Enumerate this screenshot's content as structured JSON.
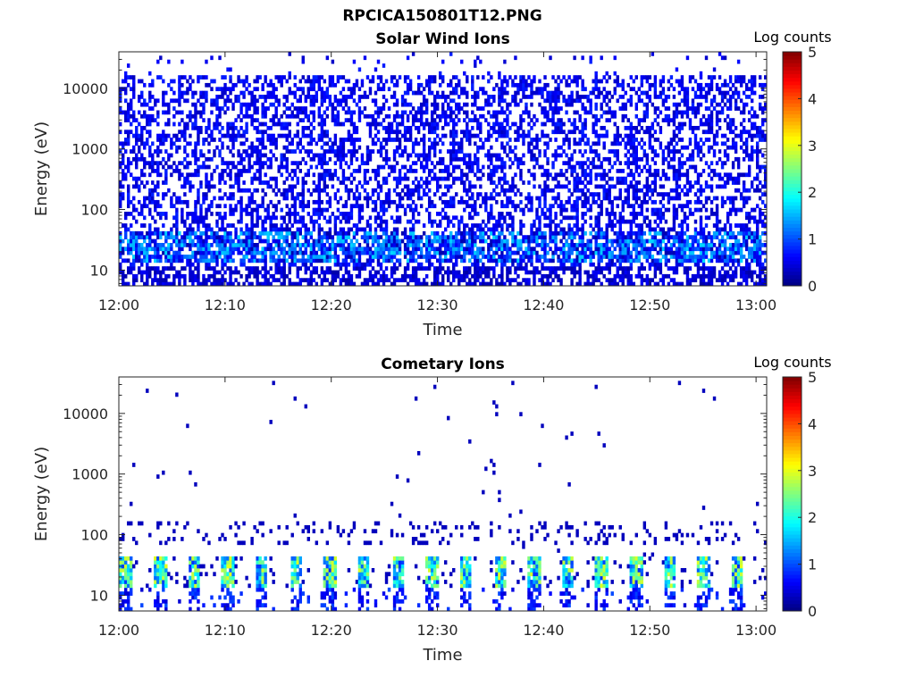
{
  "figure": {
    "file_title": "RPCICA150801T12.PNG"
  },
  "chart_data": [
    {
      "type": "heatmap",
      "title": "Solar Wind Ions",
      "xlabel": "Time",
      "ylabel": "Energy (eV)",
      "x_ticks": [
        "12:00",
        "12:10",
        "12:20",
        "12:30",
        "12:40",
        "12:50",
        "13:00"
      ],
      "y_ticks": [
        "10",
        "100",
        "1000",
        "10000"
      ],
      "yscale": "log",
      "xlim": [
        "12:00",
        "13:01"
      ],
      "ylim": [
        5.5,
        40000
      ],
      "colorbar": {
        "label": "Log counts",
        "ticks": [
          "0",
          "1",
          "2",
          "3",
          "4",
          "5"
        ],
        "range": [
          0,
          5
        ],
        "colormap": "jet"
      },
      "description_values": {
        "background_log_counts": 0.3,
        "band_energy_range_eV": [
          12,
          40
        ],
        "band_peak_log_counts": 1.5,
        "high_energy_cutoff_eV": 15000
      }
    },
    {
      "type": "heatmap",
      "title": "Cometary Ions",
      "xlabel": "Time",
      "ylabel": "Energy (eV)",
      "x_ticks": [
        "12:00",
        "12:10",
        "12:20",
        "12:30",
        "12:40",
        "12:50",
        "13:00"
      ],
      "y_ticks": [
        "10",
        "100",
        "1000",
        "10000"
      ],
      "yscale": "log",
      "xlim": [
        "12:00",
        "13:01"
      ],
      "ylim": [
        5.5,
        40000
      ],
      "colorbar": {
        "label": "Log counts",
        "ticks": [
          "0",
          "1",
          "2",
          "3",
          "4",
          "5"
        ],
        "range": [
          0,
          5
        ],
        "colormap": "jet"
      },
      "description_values": {
        "band_energy_range_eV": [
          12,
          40
        ],
        "band_peak_log_counts": 3.0,
        "band_period_minutes": 3.2,
        "sparse_region_eV": [
          60,
          150
        ]
      }
    }
  ]
}
